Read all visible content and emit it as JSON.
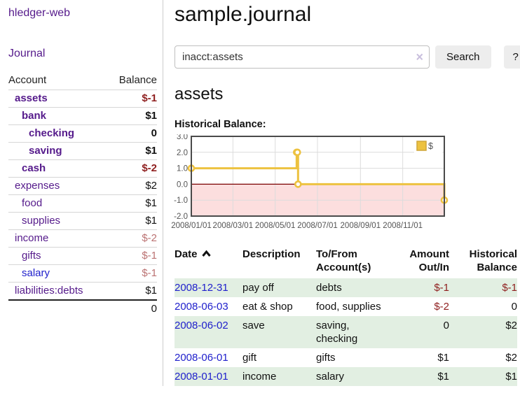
{
  "app": {
    "title": "hledger-web"
  },
  "sidebar": {
    "journal_link": "Journal",
    "accounts": {
      "account_header": "Account",
      "balance_header": "Balance",
      "rows": [
        {
          "account": "assets",
          "balance": "$-1",
          "depth": 1,
          "bold": true,
          "blue": false,
          "balance_class": "neg"
        },
        {
          "account": "bank",
          "balance": "$1",
          "depth": 2,
          "bold": true,
          "blue": false,
          "balance_class": ""
        },
        {
          "account": "checking",
          "balance": "0",
          "depth": 3,
          "bold": true,
          "blue": false,
          "balance_class": ""
        },
        {
          "account": "saving",
          "balance": "$1",
          "depth": 3,
          "bold": true,
          "blue": false,
          "balance_class": ""
        },
        {
          "account": "cash",
          "balance": "$-2",
          "depth": 2,
          "bold": true,
          "blue": false,
          "balance_class": "neg"
        },
        {
          "account": "expenses",
          "balance": "$2",
          "depth": 1,
          "bold": false,
          "blue": false,
          "balance_class": ""
        },
        {
          "account": "food",
          "balance": "$1",
          "depth": 2,
          "bold": false,
          "blue": false,
          "balance_class": ""
        },
        {
          "account": "supplies",
          "balance": "$1",
          "depth": 2,
          "bold": false,
          "blue": false,
          "balance_class": ""
        },
        {
          "account": "income",
          "balance": "$-2",
          "depth": 1,
          "bold": false,
          "blue": false,
          "balance_class": "faded"
        },
        {
          "account": "gifts",
          "balance": "$-1",
          "depth": 2,
          "bold": false,
          "blue": false,
          "balance_class": "faded"
        },
        {
          "account": "salary",
          "balance": "$-1",
          "depth": 2,
          "bold": false,
          "blue": true,
          "balance_class": "faded"
        },
        {
          "account": "liabilities:debts",
          "balance": "$1",
          "depth": 1,
          "bold": false,
          "blue": false,
          "balance_class": ""
        }
      ],
      "total": "0"
    }
  },
  "main": {
    "title": "sample.journal",
    "search": {
      "value": "inacct:assets",
      "clear_icon": "×",
      "button_label": "Search",
      "help_label": "?"
    },
    "account_title": "assets",
    "chart_label": "Historical Balance:"
  },
  "chart_data": {
    "type": "line",
    "step": true,
    "title": "Historical Balance",
    "x_range": [
      "2008-01-01",
      "2008-12-31"
    ],
    "ylim": [
      -2,
      3
    ],
    "y_ticks": [
      3.0,
      2.0,
      1.0,
      0.0,
      -1.0,
      -2.0
    ],
    "x_ticks": [
      {
        "date": "2008-01-01",
        "label": "2008/01/01"
      },
      {
        "date": "2008-03-01",
        "label": "2008/03/01"
      },
      {
        "date": "2008-05-01",
        "label": "2008/05/01"
      },
      {
        "date": "2008-07-01",
        "label": "2008/07/01"
      },
      {
        "date": "2008-09-01",
        "label": "2008/09/01"
      },
      {
        "date": "2008-11-01",
        "label": "2008/11/01"
      }
    ],
    "series": [
      {
        "name": "$",
        "color": "#EDC240",
        "points": [
          {
            "date": "2008-01-01",
            "value": 1
          },
          {
            "date": "2008-06-01",
            "value": 2
          },
          {
            "date": "2008-06-02",
            "value": 2
          },
          {
            "date": "2008-06-03",
            "value": 0
          },
          {
            "date": "2008-12-31",
            "value": -1
          }
        ]
      }
    ],
    "grid": true,
    "legend_position": "top-right",
    "legend_label": "$",
    "negative_region_color": "#FCDEDE",
    "zero_line_color": "#7A0000",
    "grid_color": "#DCDCDC",
    "border_color": "#4A4A4A",
    "tick_text_color": "#545454"
  },
  "register": {
    "headers": {
      "date": "Date",
      "description": "Description",
      "accounts": "To/From Account(s)",
      "amount": "Amount Out/In",
      "balance": "Historical Balance"
    },
    "sort": {
      "column": "date",
      "direction": "ascending"
    },
    "rows": [
      {
        "date": "2008-12-31",
        "description": "pay off",
        "accounts": "debts",
        "amount": "$-1",
        "amount_neg": true,
        "balance": "$-1",
        "balance_neg": true
      },
      {
        "date": "2008-06-03",
        "description": "eat & shop",
        "accounts": "food, supplies",
        "amount": "$-2",
        "amount_neg": true,
        "balance": "0",
        "balance_neg": false
      },
      {
        "date": "2008-06-02",
        "description": "save",
        "accounts": "saving, checking",
        "amount": "0",
        "amount_neg": false,
        "balance": "$2",
        "balance_neg": false
      },
      {
        "date": "2008-06-01",
        "description": "gift",
        "accounts": "gifts",
        "amount": "$1",
        "amount_neg": false,
        "balance": "$2",
        "balance_neg": false
      },
      {
        "date": "2008-01-01",
        "description": "income",
        "accounts": "salary",
        "amount": "$1",
        "amount_neg": false,
        "balance": "$1",
        "balance_neg": false
      }
    ]
  }
}
